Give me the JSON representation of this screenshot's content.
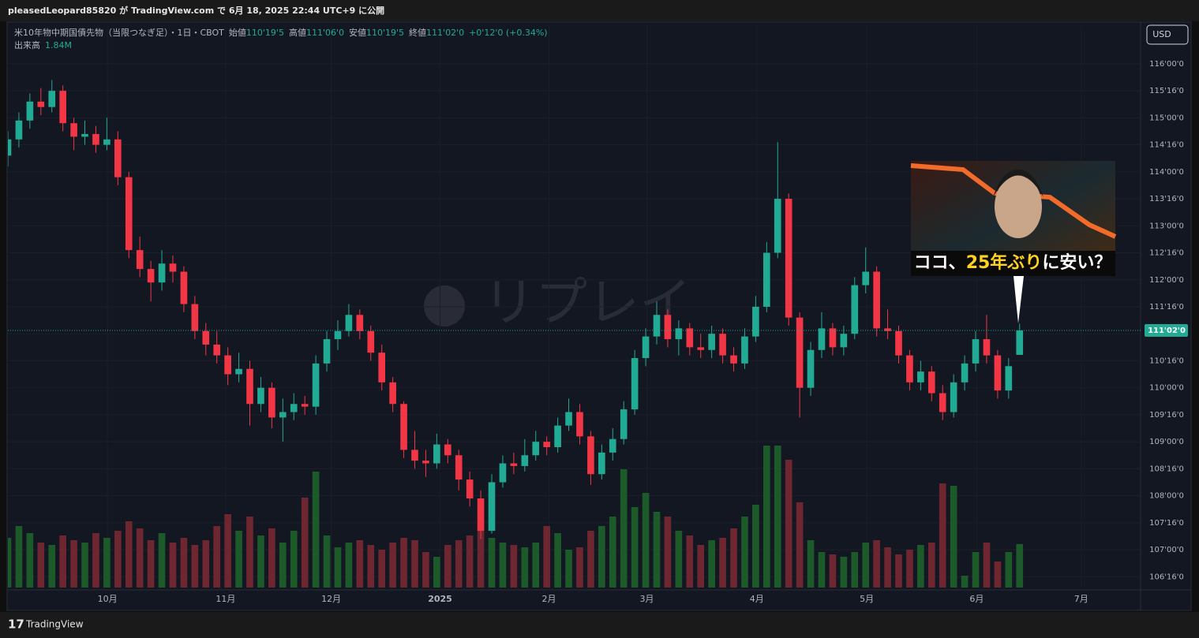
{
  "topbar": {
    "text": "pleasedLeopard85820 が TradingView.com で 6月 18, 2025 22:44 UTC+9 に公開"
  },
  "footer": {
    "brand": "TradingView"
  },
  "currency_button": "USD",
  "watermark": "リプレイ",
  "legend": {
    "symbol": "米10年物中期国債先物（当限つなぎ足）・1日・CBOT",
    "open_label": "始値",
    "open": "110'19'5",
    "high_label": "高値",
    "high": "111'06'0",
    "low_label": "安値",
    "low": "110'19'5",
    "close_label": "終値",
    "close": "111'02'0",
    "change": "+0'12'0 (+0.34%)"
  },
  "thumbnail": {
    "caption_parts": [
      "ココ、",
      "25年ぶり",
      "に安い？"
    ]
  },
  "chart_data": {
    "type": "candlestick",
    "up_color": "#22ab94",
    "down_color": "#f23645",
    "volume_up_color": "#1d5a2a",
    "volume_down_color": "#6e2630",
    "xlim": [
      0,
      103
    ],
    "xticks": [
      {
        "value": 9.05,
        "label": "10月"
      },
      {
        "value": 19.8,
        "label": "11月"
      },
      {
        "value": 29.4,
        "label": "12月"
      },
      {
        "value": 39.3,
        "label": "2025"
      },
      {
        "value": 49.2,
        "label": "2月"
      },
      {
        "value": 58.1,
        "label": "3月"
      },
      {
        "value": 68.1,
        "label": "4月"
      },
      {
        "value": 78.1,
        "label": "5月"
      },
      {
        "value": 88.1,
        "label": "6月"
      },
      {
        "value": 97.6,
        "label": "7月"
      }
    ],
    "ylim": [
      106.3,
      116.7
    ],
    "yticks": [
      {
        "value": 116,
        "label": "116'00'0"
      },
      {
        "value": 115.5,
        "label": "115'16'0"
      },
      {
        "value": 115,
        "label": "115'00'0"
      },
      {
        "value": 114.5,
        "label": "114'16'0"
      },
      {
        "value": 114,
        "label": "114'00'0"
      },
      {
        "value": 113.5,
        "label": "113'16'0"
      },
      {
        "value": 113,
        "label": "113'00'0"
      },
      {
        "value": 112.5,
        "label": "112'16'0"
      },
      {
        "value": 112,
        "label": "112'00'0"
      },
      {
        "value": 111.5,
        "label": "111'16'0"
      },
      {
        "value": 111,
        "label": "111'00'0"
      },
      {
        "value": 110.5,
        "label": "110'16'0"
      },
      {
        "value": 110,
        "label": "110'00'0"
      },
      {
        "value": 109.5,
        "label": "109'16'0"
      },
      {
        "value": 109,
        "label": "109'00'0"
      },
      {
        "value": 108.5,
        "label": "108'16'0"
      },
      {
        "value": 108,
        "label": "108'00'0"
      },
      {
        "value": 107.5,
        "label": "107'16'0"
      },
      {
        "value": 107,
        "label": "107'00'0"
      },
      {
        "value": 106.5,
        "label": "106'16'0"
      }
    ],
    "last_price": {
      "value": 111.0625,
      "label": "111'02'0"
    },
    "ohlc": [
      [
        114.3,
        114.75,
        114.1,
        114.6
      ],
      [
        114.6,
        115.1,
        114.45,
        114.95
      ],
      [
        114.95,
        115.45,
        114.8,
        115.3
      ],
      [
        115.3,
        115.55,
        115.05,
        115.2
      ],
      [
        115.2,
        115.7,
        115.1,
        115.5
      ],
      [
        115.5,
        115.6,
        114.75,
        114.9
      ],
      [
        114.9,
        115.0,
        114.4,
        114.65
      ],
      [
        114.65,
        114.95,
        114.5,
        114.7
      ],
      [
        114.7,
        114.85,
        114.35,
        114.5
      ],
      [
        114.5,
        115.0,
        114.4,
        114.6
      ],
      [
        114.6,
        114.75,
        113.75,
        113.9
      ],
      [
        113.9,
        114.0,
        112.4,
        112.55
      ],
      [
        112.55,
        112.8,
        112.05,
        112.2
      ],
      [
        112.2,
        112.35,
        111.6,
        111.95
      ],
      [
        111.95,
        112.55,
        111.8,
        112.3
      ],
      [
        112.3,
        112.45,
        111.95,
        112.15
      ],
      [
        112.15,
        112.25,
        111.4,
        111.55
      ],
      [
        111.55,
        111.7,
        110.9,
        111.05
      ],
      [
        111.05,
        111.2,
        110.6,
        110.8
      ],
      [
        110.8,
        111.05,
        110.45,
        110.6
      ],
      [
        110.6,
        110.75,
        110.05,
        110.25
      ],
      [
        110.25,
        110.65,
        110.1,
        110.35
      ],
      [
        110.35,
        110.5,
        109.3,
        109.7
      ],
      [
        109.7,
        110.2,
        109.55,
        110.0
      ],
      [
        110.0,
        110.1,
        109.25,
        109.45
      ],
      [
        109.45,
        109.8,
        109.0,
        109.55
      ],
      [
        109.55,
        109.9,
        109.4,
        109.7
      ],
      [
        109.7,
        109.85,
        109.5,
        109.65
      ],
      [
        109.65,
        110.6,
        109.5,
        110.45
      ],
      [
        110.45,
        111.05,
        110.3,
        110.9
      ],
      [
        110.9,
        111.25,
        110.7,
        111.05
      ],
      [
        111.05,
        111.55,
        110.95,
        111.35
      ],
      [
        111.35,
        111.45,
        110.9,
        111.05
      ],
      [
        111.05,
        111.15,
        110.5,
        110.65
      ],
      [
        110.65,
        110.8,
        109.95,
        110.1
      ],
      [
        110.1,
        110.2,
        109.55,
        109.7
      ],
      [
        109.7,
        109.75,
        108.7,
        108.85
      ],
      [
        108.85,
        109.2,
        108.5,
        108.65
      ],
      [
        108.65,
        108.85,
        108.35,
        108.6
      ],
      [
        108.6,
        109.15,
        108.5,
        108.95
      ],
      [
        108.95,
        109.05,
        108.6,
        108.75
      ],
      [
        108.75,
        108.85,
        108.1,
        108.3
      ],
      [
        108.3,
        108.45,
        107.8,
        107.95
      ],
      [
        107.95,
        108.1,
        107.2,
        107.35
      ],
      [
        107.35,
        108.4,
        107.3,
        108.25
      ],
      [
        108.25,
        108.75,
        108.15,
        108.6
      ],
      [
        108.6,
        108.8,
        108.4,
        108.55
      ],
      [
        108.55,
        109.05,
        108.45,
        108.75
      ],
      [
        108.75,
        109.2,
        108.65,
        109.0
      ],
      [
        109.0,
        109.1,
        108.75,
        108.9
      ],
      [
        108.9,
        109.45,
        108.8,
        109.3
      ],
      [
        109.3,
        109.8,
        109.2,
        109.55
      ],
      [
        109.55,
        109.7,
        108.95,
        109.1
      ],
      [
        109.1,
        109.2,
        108.2,
        108.4
      ],
      [
        108.4,
        108.95,
        108.3,
        108.8
      ],
      [
        108.8,
        109.25,
        108.65,
        109.05
      ],
      [
        109.05,
        109.75,
        108.95,
        109.6
      ],
      [
        109.6,
        110.7,
        109.5,
        110.55
      ],
      [
        110.55,
        111.1,
        110.4,
        110.95
      ],
      [
        110.95,
        111.6,
        110.8,
        111.35
      ],
      [
        111.35,
        111.45,
        110.75,
        110.9
      ],
      [
        110.9,
        111.25,
        110.6,
        111.1
      ],
      [
        111.1,
        111.2,
        110.6,
        110.75
      ],
      [
        110.75,
        111.0,
        110.55,
        110.7
      ],
      [
        110.7,
        111.15,
        110.55,
        111.0
      ],
      [
        111.0,
        111.1,
        110.45,
        110.6
      ],
      [
        110.6,
        110.75,
        110.3,
        110.45
      ],
      [
        110.45,
        111.1,
        110.35,
        110.95
      ],
      [
        110.95,
        111.7,
        110.85,
        111.5
      ],
      [
        111.5,
        112.7,
        111.4,
        112.5
      ],
      [
        112.5,
        114.55,
        112.4,
        113.5
      ],
      [
        113.5,
        113.6,
        111.15,
        111.3
      ],
      [
        111.3,
        111.4,
        109.45,
        110.0
      ],
      [
        110.0,
        110.85,
        109.85,
        110.7
      ],
      [
        110.7,
        111.4,
        110.55,
        111.1
      ],
      [
        111.1,
        111.2,
        110.6,
        110.75
      ],
      [
        110.75,
        111.15,
        110.6,
        111.0
      ],
      [
        111.0,
        112.05,
        110.9,
        111.9
      ],
      [
        111.9,
        112.6,
        111.75,
        112.15
      ],
      [
        112.15,
        112.25,
        110.95,
        111.1
      ],
      [
        111.1,
        111.45,
        110.9,
        111.05
      ],
      [
        111.05,
        111.15,
        110.45,
        110.6
      ],
      [
        110.6,
        110.7,
        109.95,
        110.1
      ],
      [
        110.1,
        110.5,
        109.95,
        110.3
      ],
      [
        110.3,
        110.4,
        109.75,
        109.9
      ],
      [
        109.9,
        110.05,
        109.4,
        109.55
      ],
      [
        109.55,
        110.25,
        109.45,
        110.1
      ],
      [
        110.1,
        110.6,
        109.95,
        110.45
      ],
      [
        110.45,
        111.05,
        110.3,
        110.9
      ],
      [
        110.9,
        111.35,
        110.45,
        110.6
      ],
      [
        110.6,
        110.7,
        109.8,
        109.95
      ],
      [
        109.95,
        110.55,
        109.8,
        110.4
      ],
      [
        110.609375,
        111.1875,
        110.609375,
        111.0625
      ]
    ],
    "volume": {
      "label": "出来高",
      "last_label": "1.84M",
      "lim": [
        0,
        6
      ],
      "values": [
        2.1,
        2.6,
        2.3,
        1.9,
        1.8,
        2.2,
        2.0,
        1.9,
        2.3,
        2.1,
        2.4,
        2.8,
        2.5,
        2.0,
        2.3,
        1.9,
        2.1,
        1.8,
        2.0,
        2.6,
        3.1,
        2.4,
        3.0,
        2.2,
        2.5,
        1.9,
        2.4,
        3.8,
        4.9,
        2.2,
        1.7,
        1.9,
        2.0,
        1.8,
        1.6,
        1.9,
        2.1,
        2.0,
        1.5,
        1.3,
        1.8,
        2.0,
        2.2,
        2.4,
        2.1,
        1.9,
        1.8,
        1.7,
        1.9,
        2.6,
        2.3,
        1.6,
        1.7,
        2.4,
        2.6,
        3.0,
        5.0,
        3.4,
        4.0,
        3.2,
        3.0,
        2.4,
        2.2,
        1.8,
        2.0,
        2.1,
        2.5,
        3.0,
        3.5,
        6.0,
        6.0,
        5.4,
        3.6,
        2.0,
        1.5,
        1.4,
        1.3,
        1.5,
        1.9,
        2.0,
        1.7,
        1.4,
        1.6,
        1.8,
        1.9,
        4.4,
        4.3,
        0.5,
        1.5,
        1.9,
        1.1,
        1.5,
        1.84
      ]
    }
  }
}
